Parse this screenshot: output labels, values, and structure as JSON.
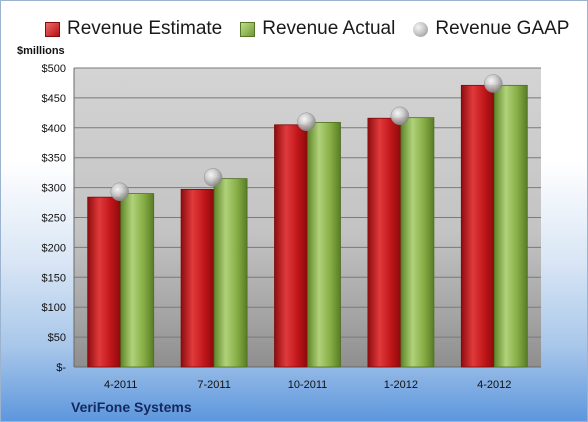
{
  "legend": {
    "estimate": "Revenue Estimate",
    "actual": "Revenue Actual",
    "gaap": "Revenue GAAP"
  },
  "y_unit": "$millions",
  "company": "VeriFone Systems",
  "colors": {
    "estimate": "#c8181c",
    "actual": "#8cb44e",
    "gaap": "#b4b4b4"
  },
  "chart_data": {
    "type": "bar",
    "categories": [
      "4-2011",
      "7-2011",
      "10-2011",
      "1-2012",
      "4-2012"
    ],
    "series": [
      {
        "name": "Revenue Estimate",
        "values": [
          284,
          297,
          405,
          416,
          471
        ]
      },
      {
        "name": "Revenue Actual",
        "values": [
          290,
          315,
          409,
          417,
          471
        ]
      },
      {
        "name": "Revenue GAAP",
        "marker": "circle",
        "values": [
          293,
          317,
          410,
          420,
          474
        ]
      }
    ],
    "ylabel": "$millions",
    "ylim": [
      0,
      500
    ],
    "yticks": [
      0,
      50,
      100,
      150,
      200,
      250,
      300,
      350,
      400,
      450,
      500
    ],
    "ytick_labels": [
      "$-",
      "$50",
      "$100",
      "$150",
      "$200",
      "$250",
      "$300",
      "$350",
      "$400",
      "$450",
      "$500"
    ],
    "grid": true,
    "legend_position": "top"
  }
}
